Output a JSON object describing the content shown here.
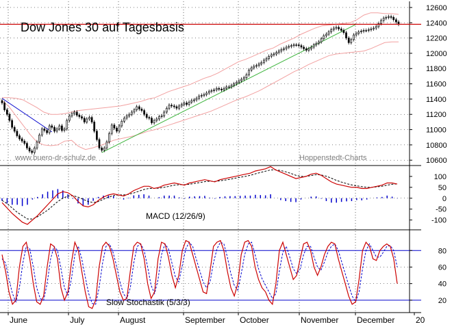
{
  "chart_data": {
    "type": "line",
    "title": "Dow Jones 30 auf Tagesbasis",
    "watermark_left": "www.buero-dr-schulz.de",
    "watermark_right": "Hoppenstedt-Charts",
    "x_months": [
      "June",
      "July",
      "August",
      "September",
      "October",
      "November",
      "December",
      "20"
    ],
    "price_panel": {
      "y_ticks": [
        12600,
        12400,
        12200,
        12000,
        11800,
        11600,
        11400,
        11200,
        11000,
        10800,
        10600
      ],
      "ylim": [
        10530,
        12680
      ],
      "resistance_line": 12380,
      "close_series": [
        11350,
        11260,
        11200,
        11120,
        11030,
        10980,
        10920,
        10880,
        10850,
        10820,
        10760,
        10720,
        10700,
        10760,
        10840,
        10930,
        11010,
        10990,
        10960,
        11050,
        11030,
        10980,
        11010,
        11050,
        10990,
        11010,
        11120,
        11180,
        11210,
        11230,
        11190,
        11170,
        11150,
        11100,
        11140,
        11160,
        11100,
        10980,
        10870,
        10760,
        10730,
        10760,
        10840,
        10950,
        11060,
        11020,
        10980,
        11050,
        11110,
        11150,
        11180,
        11200,
        11230,
        11260,
        11300,
        11270,
        11250,
        11200,
        11160,
        11150,
        11090,
        11120,
        11140,
        11170,
        11180,
        11230,
        11280,
        11320,
        11310,
        11300,
        11280,
        11310,
        11330,
        11350,
        11330,
        11360,
        11380,
        11390,
        11410,
        11440,
        11450,
        11460,
        11480,
        11500,
        11510,
        11520,
        11540,
        11530,
        11520,
        11540,
        11560,
        11560,
        11580,
        11600,
        11620,
        11640,
        11660,
        11680,
        11720,
        11780,
        11810,
        11830,
        11840,
        11860,
        11880,
        11910,
        11930,
        11960,
        11980,
        11990,
        12010,
        12030,
        12050,
        12060,
        12080,
        12090,
        12100,
        12110,
        12110,
        12100,
        12080,
        12060,
        12040,
        12060,
        12080,
        12110,
        12130,
        12150,
        12190,
        12230,
        12250,
        12280,
        12310,
        12330,
        12340,
        12320,
        12300,
        12270,
        12200,
        12140,
        12180,
        12240,
        12260,
        12280,
        12290,
        12300,
        12300,
        12310,
        12320,
        12330,
        12350,
        12390,
        12430,
        12460,
        12470,
        12480,
        12470,
        12440,
        12410,
        12380
      ],
      "bollinger_upper": [
        11420,
        11420,
        11410,
        11390,
        11340,
        11290,
        11230,
        11200,
        11200,
        11210,
        11230,
        11250,
        11260,
        11270,
        11280,
        11290,
        11300,
        11310,
        11330,
        11350,
        11370,
        11400,
        11420,
        11460,
        11500,
        11530,
        11560,
        11590,
        11630,
        11670,
        11700,
        11740,
        11790,
        11840,
        11890,
        11920,
        11960,
        12000,
        12040,
        12070,
        12120,
        12160,
        12200,
        12250,
        12290,
        12330,
        12360,
        12370,
        12380,
        12390,
        12400,
        12440,
        12500,
        12530,
        12530,
        12520,
        12520,
        12510
      ],
      "bollinger_lower": [
        11380,
        11300,
        11180,
        11060,
        10940,
        10840,
        10800,
        10790,
        10800,
        10850,
        10860,
        10780,
        10740,
        10760,
        10790,
        10820,
        10860,
        10880,
        10900,
        10920,
        10950,
        10980,
        11000,
        11030,
        11060,
        11090,
        11120,
        11150,
        11180,
        11210,
        11240,
        11280,
        11320,
        11360,
        11400,
        11430,
        11470,
        11510,
        11560,
        11610,
        11660,
        11710,
        11760,
        11800,
        11850,
        11890,
        11930,
        11970,
        11990,
        12000,
        12010,
        12020,
        12030,
        12060,
        12100,
        12140,
        12150,
        12150
      ]
    },
    "macd_panel": {
      "label": "MACD (12/26/9)",
      "y_ticks": [
        100,
        50,
        0,
        -50,
        -100
      ],
      "ylim": [
        -145,
        150
      ],
      "macd_series": [
        -20,
        -45,
        -70,
        -90,
        -110,
        -120,
        -100,
        -80,
        -55,
        -30,
        -5,
        20,
        30,
        25,
        10,
        -15,
        -35,
        -40,
        -30,
        -10,
        5,
        15,
        20,
        15,
        10,
        20,
        35,
        45,
        55,
        55,
        45,
        50,
        60,
        65,
        70,
        65,
        60,
        70,
        75,
        80,
        85,
        80,
        75,
        85,
        90,
        95,
        100,
        105,
        110,
        115,
        125,
        130,
        135,
        145,
        130,
        120,
        110,
        100,
        90,
        95,
        100,
        110,
        115,
        105,
        90,
        75,
        65,
        60,
        55,
        50,
        50,
        45,
        45,
        50,
        55,
        60,
        70,
        70,
        65
      ],
      "signal_series": [
        -10,
        -25,
        -45,
        -65,
        -80,
        -95,
        -95,
        -85,
        -70,
        -55,
        -35,
        -15,
        0,
        10,
        12,
        5,
        -5,
        -15,
        -20,
        -15,
        -5,
        5,
        12,
        15,
        15,
        18,
        24,
        32,
        40,
        45,
        45,
        46,
        50,
        55,
        60,
        62,
        62,
        64,
        68,
        72,
        76,
        78,
        77,
        80,
        83,
        87,
        92,
        96,
        100,
        105,
        112,
        118,
        124,
        130,
        130,
        127,
        121,
        114,
        105,
        100,
        100,
        104,
        108,
        107,
        101,
        92,
        82,
        74,
        67,
        61,
        57,
        53,
        50,
        50,
        52,
        55,
        60,
        64,
        66
      ]
    },
    "stochastic_panel": {
      "label": "Slow Stochastik (5/3/3)",
      "y_ticks": [
        80,
        60,
        40,
        20
      ],
      "ylim": [
        5,
        105
      ],
      "band_levels": [
        80,
        20
      ],
      "k_series": [
        75,
        55,
        30,
        15,
        20,
        60,
        85,
        90,
        70,
        40,
        18,
        15,
        25,
        60,
        88,
        85,
        70,
        35,
        20,
        30,
        65,
        90,
        80,
        55,
        30,
        12,
        10,
        20,
        60,
        85,
        90,
        85,
        70,
        50,
        30,
        20,
        22,
        55,
        85,
        90,
        88,
        70,
        40,
        22,
        30,
        70,
        90,
        88,
        72,
        50,
        35,
        50,
        80,
        92,
        90,
        75,
        60,
        45,
        30,
        28,
        55,
        85,
        90,
        92,
        80,
        55,
        35,
        25,
        40,
        75,
        90,
        92,
        85,
        60,
        45,
        35,
        30,
        20,
        15,
        40,
        80,
        90,
        75,
        60,
        45,
        50,
        70,
        88,
        90,
        80,
        60,
        50,
        60,
        75,
        85,
        90,
        88,
        70,
        55,
        40,
        25,
        15,
        18,
        45,
        80,
        90,
        85,
        70,
        68,
        80,
        85,
        88,
        85,
        70,
        40
      ],
      "d_series": [
        70,
        65,
        45,
        28,
        18,
        35,
        65,
        85,
        82,
        60,
        35,
        22,
        20,
        40,
        70,
        85,
        80,
        58,
        35,
        26,
        45,
        75,
        85,
        70,
        48,
        28,
        16,
        15,
        35,
        65,
        85,
        88,
        78,
        62,
        42,
        28,
        22,
        35,
        65,
        85,
        88,
        80,
        60,
        38,
        28,
        45,
        75,
        88,
        82,
        65,
        48,
        42,
        62,
        82,
        90,
        85,
        70,
        56,
        42,
        35,
        42,
        65,
        82,
        90,
        88,
        72,
        52,
        38,
        32,
        52,
        75,
        88,
        90,
        75,
        58,
        46,
        38,
        30,
        22,
        28,
        55,
        78,
        85,
        72,
        58,
        52,
        58,
        75,
        85,
        85,
        72,
        60,
        56,
        66,
        78,
        85,
        88,
        80,
        66,
        52,
        38,
        25,
        18,
        30,
        58,
        80,
        88,
        80,
        72,
        72,
        78,
        85,
        86,
        80,
        60
      ]
    }
  }
}
